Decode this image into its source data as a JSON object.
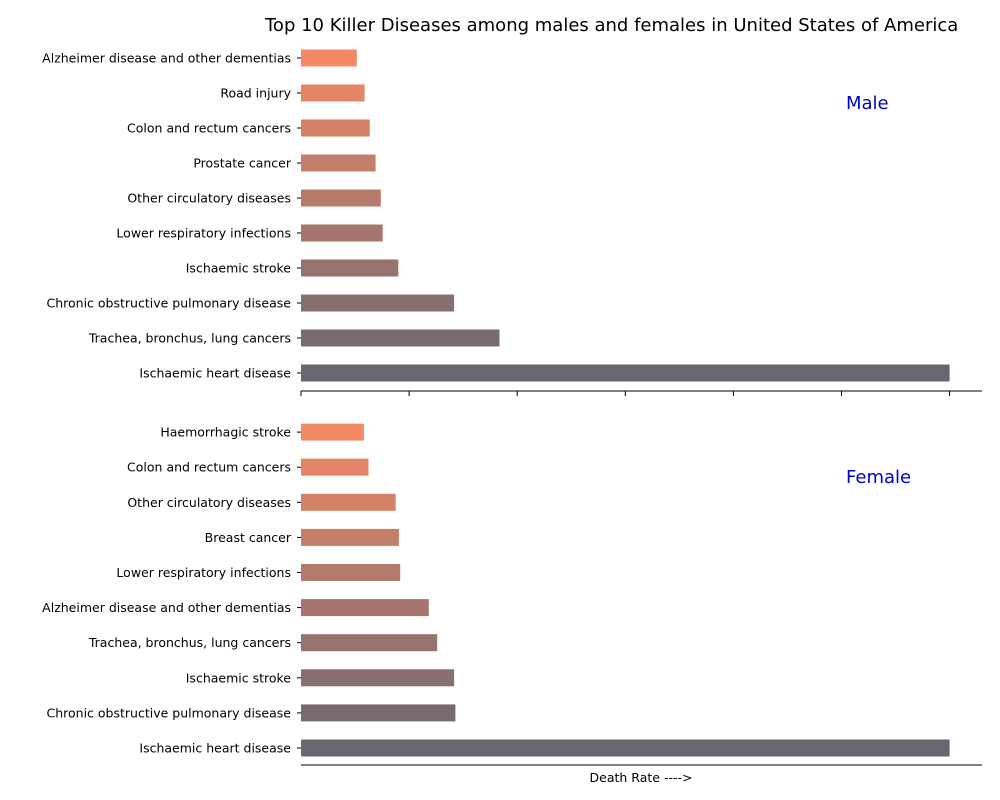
{
  "chart_data": {
    "type": "bar",
    "orientation": "horizontal",
    "title": "Top 10 Killer Diseases among males and females in United States of America",
    "xlabel": "Death Rate ---->",
    "panel_label_color": "#0000cc",
    "bar_colors": [
      "#686770",
      "#776b6f",
      "#866f6e",
      "#96736c",
      "#a5766b",
      "#b57a6a",
      "#c47e69",
      "#d48167",
      "#e38566",
      "#f38965"
    ],
    "panels": [
      {
        "label": "Male",
        "categories": [
          "Ischaemic heart disease",
          "Trachea, bronchus, lung cancers",
          "Chronic obstructive pulmonary disease",
          "Ischaemic stroke",
          "Lower respiratory infections",
          "Other circulatory diseases",
          "Prostate cancer",
          "Colon and rectum cancers",
          "Road injury",
          "Alzheimer disease and other dementias"
        ],
        "values": [
          100,
          30.6,
          23.6,
          15.0,
          12.6,
          12.3,
          11.5,
          10.6,
          9.8,
          8.6
        ]
      },
      {
        "label": "Female",
        "categories": [
          "Ischaemic heart disease",
          "Chronic obstructive pulmonary disease",
          "Ischaemic stroke",
          "Trachea, bronchus, lung cancers",
          "Alzheimer disease and other dementias",
          "Lower respiratory infections",
          "Breast cancer",
          "Other circulatory diseases",
          "Colon and rectum cancers",
          "Haemorrhagic stroke"
        ],
        "values": [
          100,
          23.8,
          23.6,
          21.0,
          19.7,
          15.3,
          15.1,
          14.6,
          10.4,
          9.7
        ]
      }
    ],
    "xlim": [
      0,
      105
    ],
    "grid": false,
    "x_tick_labels_shown": false
  }
}
